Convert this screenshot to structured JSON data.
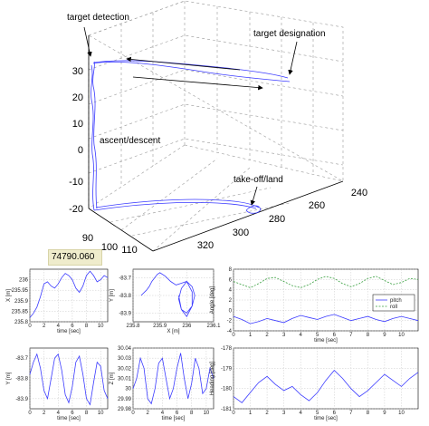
{
  "readout": "74790.060",
  "main3d": {
    "annotations": [
      "target detection",
      "target designation",
      "ascent/descent",
      "take-off/land"
    ],
    "z_ticks": [
      "30",
      "20",
      "10",
      "0",
      "-10",
      "-20"
    ],
    "x_ticks": [
      "90",
      "100",
      "110"
    ],
    "y_ticks": [
      "320",
      "300",
      "280",
      "260",
      "240"
    ]
  },
  "colors": {
    "trace": "#3b3bff",
    "pitch": "#3b3bff",
    "roll": "#3aa040"
  },
  "chart_data": [
    {
      "type": "line",
      "name": "x-vs-time",
      "ylabel": "X [m]",
      "xlabel": "time [sec]",
      "xlim": [
        0,
        11
      ],
      "ylim": [
        235.8,
        236.05
      ],
      "x_ticks": [
        0,
        2,
        4,
        6,
        8,
        10
      ],
      "y_ticks": [
        235.8,
        235.85,
        235.9,
        235.95,
        236
      ],
      "x": [
        0,
        0.5,
        1,
        1.5,
        2,
        2.5,
        3,
        3.5,
        4,
        4.5,
        5,
        5.5,
        6,
        6.5,
        7,
        7.5,
        8,
        8.5,
        9,
        9.5,
        10,
        10.5,
        11
      ],
      "y": [
        235.82,
        235.84,
        235.87,
        235.92,
        235.98,
        235.99,
        235.97,
        235.96,
        235.98,
        236.01,
        236.03,
        236.02,
        236.0,
        235.96,
        235.94,
        235.97,
        236.02,
        236.04,
        236.02,
        235.99,
        236.0,
        236.02,
        236.01
      ]
    },
    {
      "type": "line",
      "name": "y-vs-x",
      "ylabel": "Y [m]",
      "xlabel": "X [m]",
      "xlim": [
        235.8,
        236.1
      ],
      "ylim": [
        -83.95,
        -83.65
      ],
      "x_ticks": [
        235.8,
        235.9,
        236,
        236.1
      ],
      "y_ticks": [
        -83.7,
        -83.8,
        -83.9
      ],
      "x": [
        235.83,
        235.85,
        235.86,
        235.87,
        235.88,
        235.89,
        235.9,
        235.92,
        235.94,
        235.96,
        235.98,
        236.0,
        236.02,
        236.03,
        236.02,
        236.0,
        235.98,
        235.97,
        235.98,
        236.0,
        236.02,
        236.02,
        236.0,
        235.98,
        235.97
      ],
      "y": [
        -83.8,
        -83.77,
        -83.75,
        -83.72,
        -83.7,
        -83.68,
        -83.67,
        -83.69,
        -83.72,
        -83.74,
        -83.73,
        -83.72,
        -83.75,
        -83.8,
        -83.86,
        -83.9,
        -83.88,
        -83.82,
        -83.76,
        -83.72,
        -83.78,
        -83.86,
        -83.92,
        -83.88,
        -83.8
      ]
    },
    {
      "type": "line",
      "name": "angles-vs-time",
      "ylabel": "Angle [deg]",
      "xlabel": "time [sec]",
      "xlim": [
        0,
        11
      ],
      "ylim": [
        -4,
        8
      ],
      "x_ticks": [
        0,
        1,
        2,
        3,
        4,
        5,
        6,
        7,
        8,
        9,
        10
      ],
      "y_ticks": [
        -4,
        -2,
        0,
        2,
        4,
        6,
        8
      ],
      "legend_entries": [
        "pitch",
        "roll"
      ],
      "legend_position": "right",
      "x": [
        0,
        0.5,
        1,
        1.5,
        2,
        2.5,
        3,
        3.5,
        4,
        4.5,
        5,
        5.5,
        6,
        6.5,
        7,
        7.5,
        8,
        8.5,
        9,
        9.5,
        10,
        10.5,
        11
      ],
      "series": [
        {
          "name": "pitch",
          "values": [
            -1.2,
            -1.8,
            -2.6,
            -2.2,
            -1.6,
            -2.0,
            -2.4,
            -1.6,
            -1.0,
            -1.4,
            -1.8,
            -1.2,
            -0.8,
            -1.4,
            -2.0,
            -1.6,
            -1.2,
            -1.8,
            -2.2,
            -1.6,
            -1.2,
            -1.6,
            -2.0
          ]
        },
        {
          "name": "roll",
          "values": [
            5.6,
            5.0,
            4.4,
            5.2,
            6.2,
            6.4,
            5.6,
            4.8,
            4.4,
            5.0,
            6.0,
            6.6,
            6.2,
            5.2,
            4.6,
            5.2,
            6.2,
            6.6,
            5.8,
            5.0,
            5.4,
            6.2,
            6.0
          ]
        }
      ]
    },
    {
      "type": "line",
      "name": "y-vs-time",
      "ylabel": "Y [m]",
      "xlabel": "time [sec]",
      "xlim": [
        0,
        11
      ],
      "ylim": [
        -83.95,
        -83.65
      ],
      "x_ticks": [
        0,
        2,
        4,
        6,
        8,
        10
      ],
      "y_ticks": [
        -83.7,
        -83.8,
        -83.9
      ],
      "x": [
        0,
        0.5,
        1,
        1.5,
        2,
        2.5,
        3,
        3.5,
        4,
        4.5,
        5,
        5.5,
        6,
        6.5,
        7,
        7.5,
        8,
        8.5,
        9,
        9.5,
        10,
        10.5,
        11
      ],
      "y": [
        -83.78,
        -83.72,
        -83.68,
        -83.75,
        -83.86,
        -83.9,
        -83.8,
        -83.7,
        -83.68,
        -83.76,
        -83.88,
        -83.92,
        -83.84,
        -83.72,
        -83.69,
        -83.78,
        -83.9,
        -83.93,
        -83.82,
        -83.72,
        -83.74,
        -83.86,
        -83.9
      ]
    },
    {
      "type": "line",
      "name": "z-vs-time",
      "ylabel": "Z [m]",
      "xlabel": "time [sec]",
      "xlim": [
        0,
        11
      ],
      "ylim": [
        29.98,
        30.04
      ],
      "x_ticks": [
        0,
        2,
        4,
        6,
        8,
        10
      ],
      "y_ticks": [
        29.98,
        29.99,
        30,
        30.01,
        30.02,
        30.03,
        30.04
      ],
      "x": [
        0,
        0.5,
        1,
        1.5,
        2,
        2.5,
        3,
        3.5,
        4,
        4.5,
        5,
        5.5,
        6,
        6.5,
        7,
        7.5,
        8,
        8.5,
        9,
        9.5,
        10,
        10.5,
        11
      ],
      "y": [
        30.0,
        30.01,
        30.03,
        30.02,
        29.99,
        29.985,
        30.0,
        30.025,
        30.03,
        30.01,
        29.99,
        30.0,
        30.02,
        30.035,
        30.01,
        29.99,
        30.005,
        30.03,
        30.02,
        29.995,
        30.0,
        30.02,
        30.01
      ]
    },
    {
      "type": "line",
      "name": "heading-vs-time",
      "ylabel": "Heading [deg]",
      "xlabel": "time [sec]",
      "xlim": [
        0,
        11
      ],
      "ylim": [
        -181,
        -178
      ],
      "x_ticks": [
        0,
        1,
        2,
        3,
        4,
        5,
        6,
        7,
        8,
        9,
        10
      ],
      "y_ticks": [
        -178,
        -179,
        -180,
        -181
      ],
      "x": [
        0,
        0.5,
        1,
        1.5,
        2,
        2.5,
        3,
        3.5,
        4,
        4.5,
        5,
        5.5,
        6,
        6.5,
        7,
        7.5,
        8,
        8.5,
        9,
        9.5,
        10,
        10.5,
        11
      ],
      "y": [
        -180.4,
        -180.7,
        -180.2,
        -179.7,
        -179.4,
        -179.8,
        -180.1,
        -179.9,
        -180.3,
        -180.6,
        -180.2,
        -179.6,
        -179.1,
        -179.5,
        -180.0,
        -180.4,
        -180.1,
        -179.7,
        -179.3,
        -179.6,
        -179.9,
        -179.5,
        -179.2
      ]
    }
  ]
}
